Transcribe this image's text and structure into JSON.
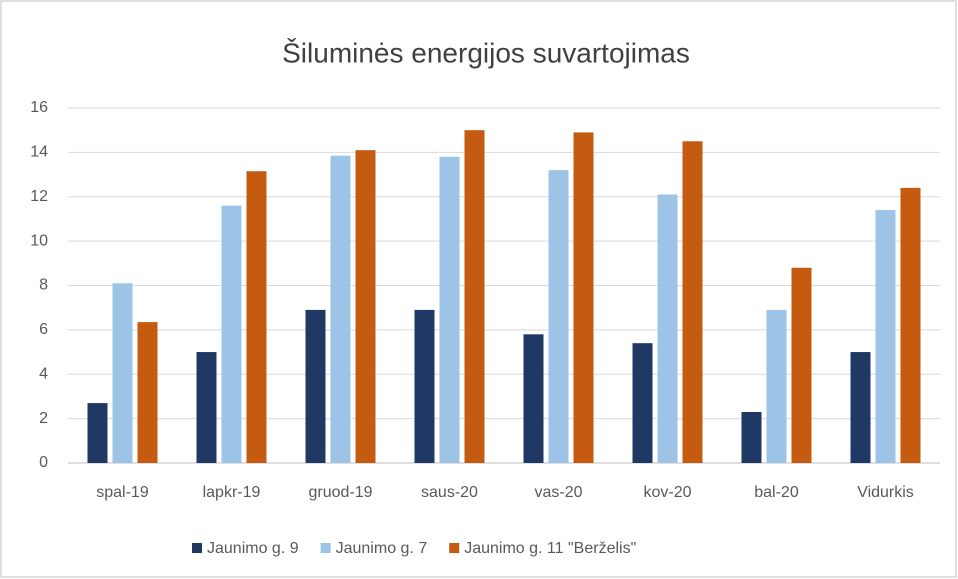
{
  "chart_data": {
    "type": "bar",
    "title": "Šiluminės energijos suvartojimas",
    "categories": [
      "spal-19",
      "lapkr-19",
      "gruod-19",
      "saus-20",
      "vas-20",
      "kov-20",
      "bal-20",
      "Vidurkis"
    ],
    "series": [
      {
        "name": "Jaunimo g. 9",
        "color": "#203864",
        "values": [
          2.7,
          5.0,
          6.9,
          6.9,
          5.8,
          5.4,
          2.3,
          5.0
        ]
      },
      {
        "name": "Jaunimo g. 7",
        "color": "#9dc3e6",
        "values": [
          8.1,
          11.6,
          13.85,
          13.8,
          13.2,
          12.1,
          6.9,
          11.4
        ]
      },
      {
        "name": "Jaunimo g. 11 \"Berželis\"",
        "color": "#c55a11",
        "values": [
          6.35,
          13.15,
          14.1,
          15.0,
          14.9,
          14.5,
          8.8,
          12.4
        ]
      }
    ],
    "ylim": [
      0,
      16
    ],
    "yticks": [
      0,
      2,
      4,
      6,
      8,
      10,
      12,
      14,
      16
    ],
    "grid": true,
    "legend": "bottom"
  }
}
